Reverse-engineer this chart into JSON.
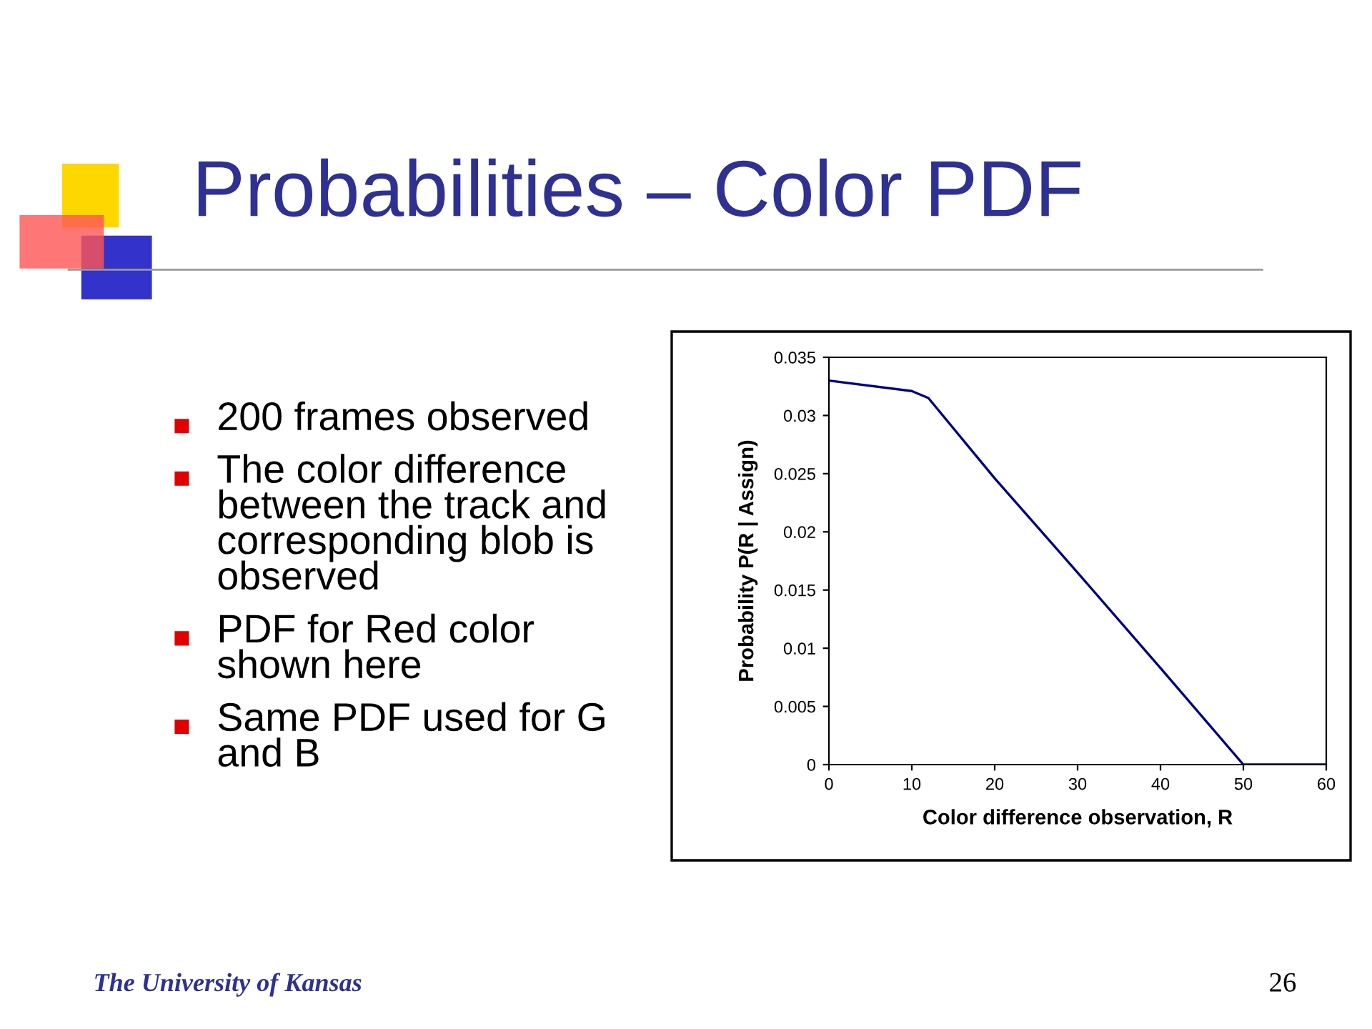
{
  "chart_data": {
    "type": "line",
    "title": "Probabilities – Color PDF",
    "xlabel": "Color difference observation, R",
    "ylabel": "Probability P(R | Assign)",
    "x": [
      0,
      10,
      12,
      20,
      30,
      40,
      50,
      60
    ],
    "series": [
      {
        "color": "#000080",
        "values": [
          0.033,
          0.0321,
          0.0315,
          0.0246,
          0.0165,
          0.0083,
          0,
          0
        ]
      }
    ],
    "xlim": [
      0,
      60
    ],
    "xticks": [
      0,
      10,
      20,
      30,
      40,
      50,
      60
    ],
    "ylim": [
      0,
      0.035
    ],
    "yticks": [
      0,
      0.005,
      0.01,
      0.015,
      0.02,
      0.025,
      0.03,
      0.035
    ],
    "grid": false,
    "marker": "none",
    "line_style": "solid",
    "annotations": [
      "200 frames observed",
      "The color difference between the track and corresponding blob is observed",
      "PDF for Red color shown here",
      "Same PDF used for G and B",
      "The University of Kansas",
      "26"
    ]
  }
}
